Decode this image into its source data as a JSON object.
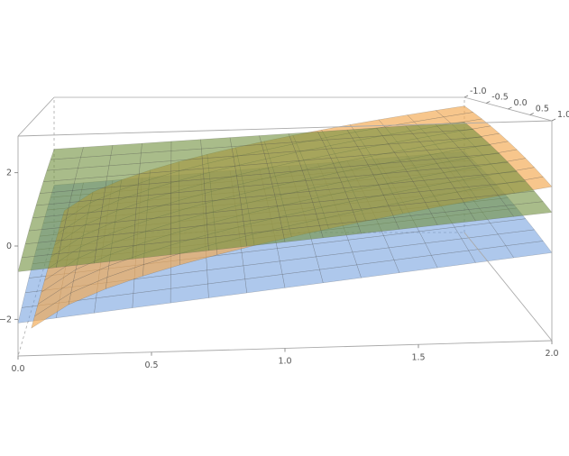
{
  "chart_data": {
    "type": "surface3d",
    "title": "",
    "axes": {
      "x": {
        "label": "",
        "range": [
          0,
          2
        ],
        "ticks": [
          "0.0",
          "0.5",
          "1.0",
          "1.5",
          "2.0"
        ]
      },
      "y": {
        "label": "",
        "range": [
          -1,
          1
        ],
        "ticks": [
          "-1.0",
          "-0.5",
          "0.0",
          "0.5",
          "1.0"
        ]
      },
      "z": {
        "label": "",
        "range": [
          -3,
          3
        ],
        "ticks": [
          "-2",
          "0",
          "2"
        ]
      }
    },
    "box": true,
    "mesh_lines": true,
    "surfaces": [
      {
        "color": "#6b9bdc",
        "opacity": 0.55,
        "description_values": {
          "at_x0": -1.5,
          "at_x2": 0.0,
          "y_tilt": -0.6
        }
      },
      {
        "color": "#f3a84f",
        "opacity": 0.65,
        "description_values": {
          "x_domain": [
            0,
            2
          ],
          "z_at_x1": -2.9,
          "z_at_x2": 0.9
        }
      },
      {
        "color": "#6f8f3c",
        "opacity": 0.6,
        "description_values": {
          "at_x0": 0.0,
          "at_x2": 1.2,
          "y_tilt": -0.7
        }
      }
    ]
  }
}
